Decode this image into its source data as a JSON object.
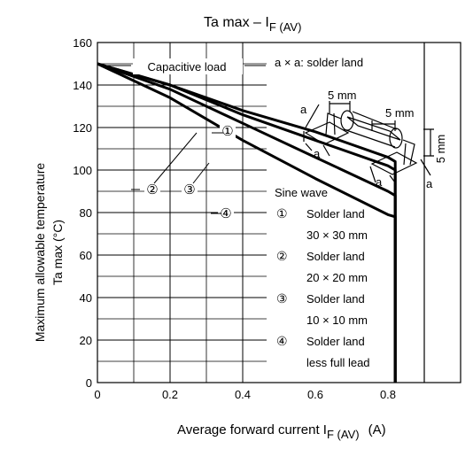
{
  "chart_data": {
    "type": "line",
    "title": {
      "main": "Ta max – I",
      "sub": "F (AV)"
    },
    "xlabel": {
      "main": "Average forward current  I",
      "sub": "F (AV)",
      "unit": "(A)"
    },
    "ylabel": {
      "line1": "Maximum allowable temperature",
      "line2": "Ta max  (°C)"
    },
    "xlim": [
      0,
      1.0
    ],
    "ylim": [
      0,
      160
    ],
    "x_ticks": [
      "0",
      "0.2",
      "0.4",
      "0.6",
      "0.8"
    ],
    "x_tick_values": [
      0,
      0.2,
      0.4,
      0.6,
      0.8
    ],
    "y_ticks": [
      "0",
      "20",
      "40",
      "60",
      "80",
      "100",
      "120",
      "140",
      "160"
    ],
    "y_tick_values": [
      0,
      20,
      40,
      60,
      80,
      100,
      120,
      140,
      160
    ],
    "grid": true,
    "series": [
      {
        "name": "①",
        "x": [
          0,
          0.2,
          0.4,
          0.6,
          0.8,
          0.82,
          0.82
        ],
        "y": [
          150,
          140,
          128,
          118,
          106,
          104,
          0
        ]
      },
      {
        "name": "②",
        "x": [
          0,
          0.2,
          0.4,
          0.6,
          0.8,
          0.82,
          0.82
        ],
        "y": [
          150,
          140,
          126,
          114,
          102,
          100,
          0
        ]
      },
      {
        "name": "③",
        "x": [
          0,
          0.2,
          0.4,
          0.6,
          0.8,
          0.82,
          0.82
        ],
        "y": [
          150,
          138,
          122,
          106,
          90,
          88,
          0
        ]
      },
      {
        "name": "④",
        "x": [
          0,
          0.2,
          0.4,
          0.6,
          0.8,
          0.82,
          0.82
        ],
        "y": [
          150,
          134,
          114,
          96,
          79,
          78,
          0
        ]
      }
    ],
    "annotations": {
      "capacitive_load": "Capacitive load",
      "curve_markers": [
        "①",
        "②",
        "③",
        "④"
      ]
    },
    "legend": {
      "solder_land_note": "a × a: solder land",
      "dim_5mm": "5 mm",
      "dim_a": "a",
      "waveform": "Sine wave",
      "items": [
        {
          "marker": "①",
          "line1": "Solder land",
          "line2": "30 × 30 mm"
        },
        {
          "marker": "②",
          "line1": "Solder land",
          "line2": "20 × 20 mm"
        },
        {
          "marker": "③",
          "line1": "Solder land",
          "line2": "10 × 10 mm"
        },
        {
          "marker": "④",
          "line1": "Solder land",
          "line2": "less full lead"
        }
      ]
    }
  }
}
